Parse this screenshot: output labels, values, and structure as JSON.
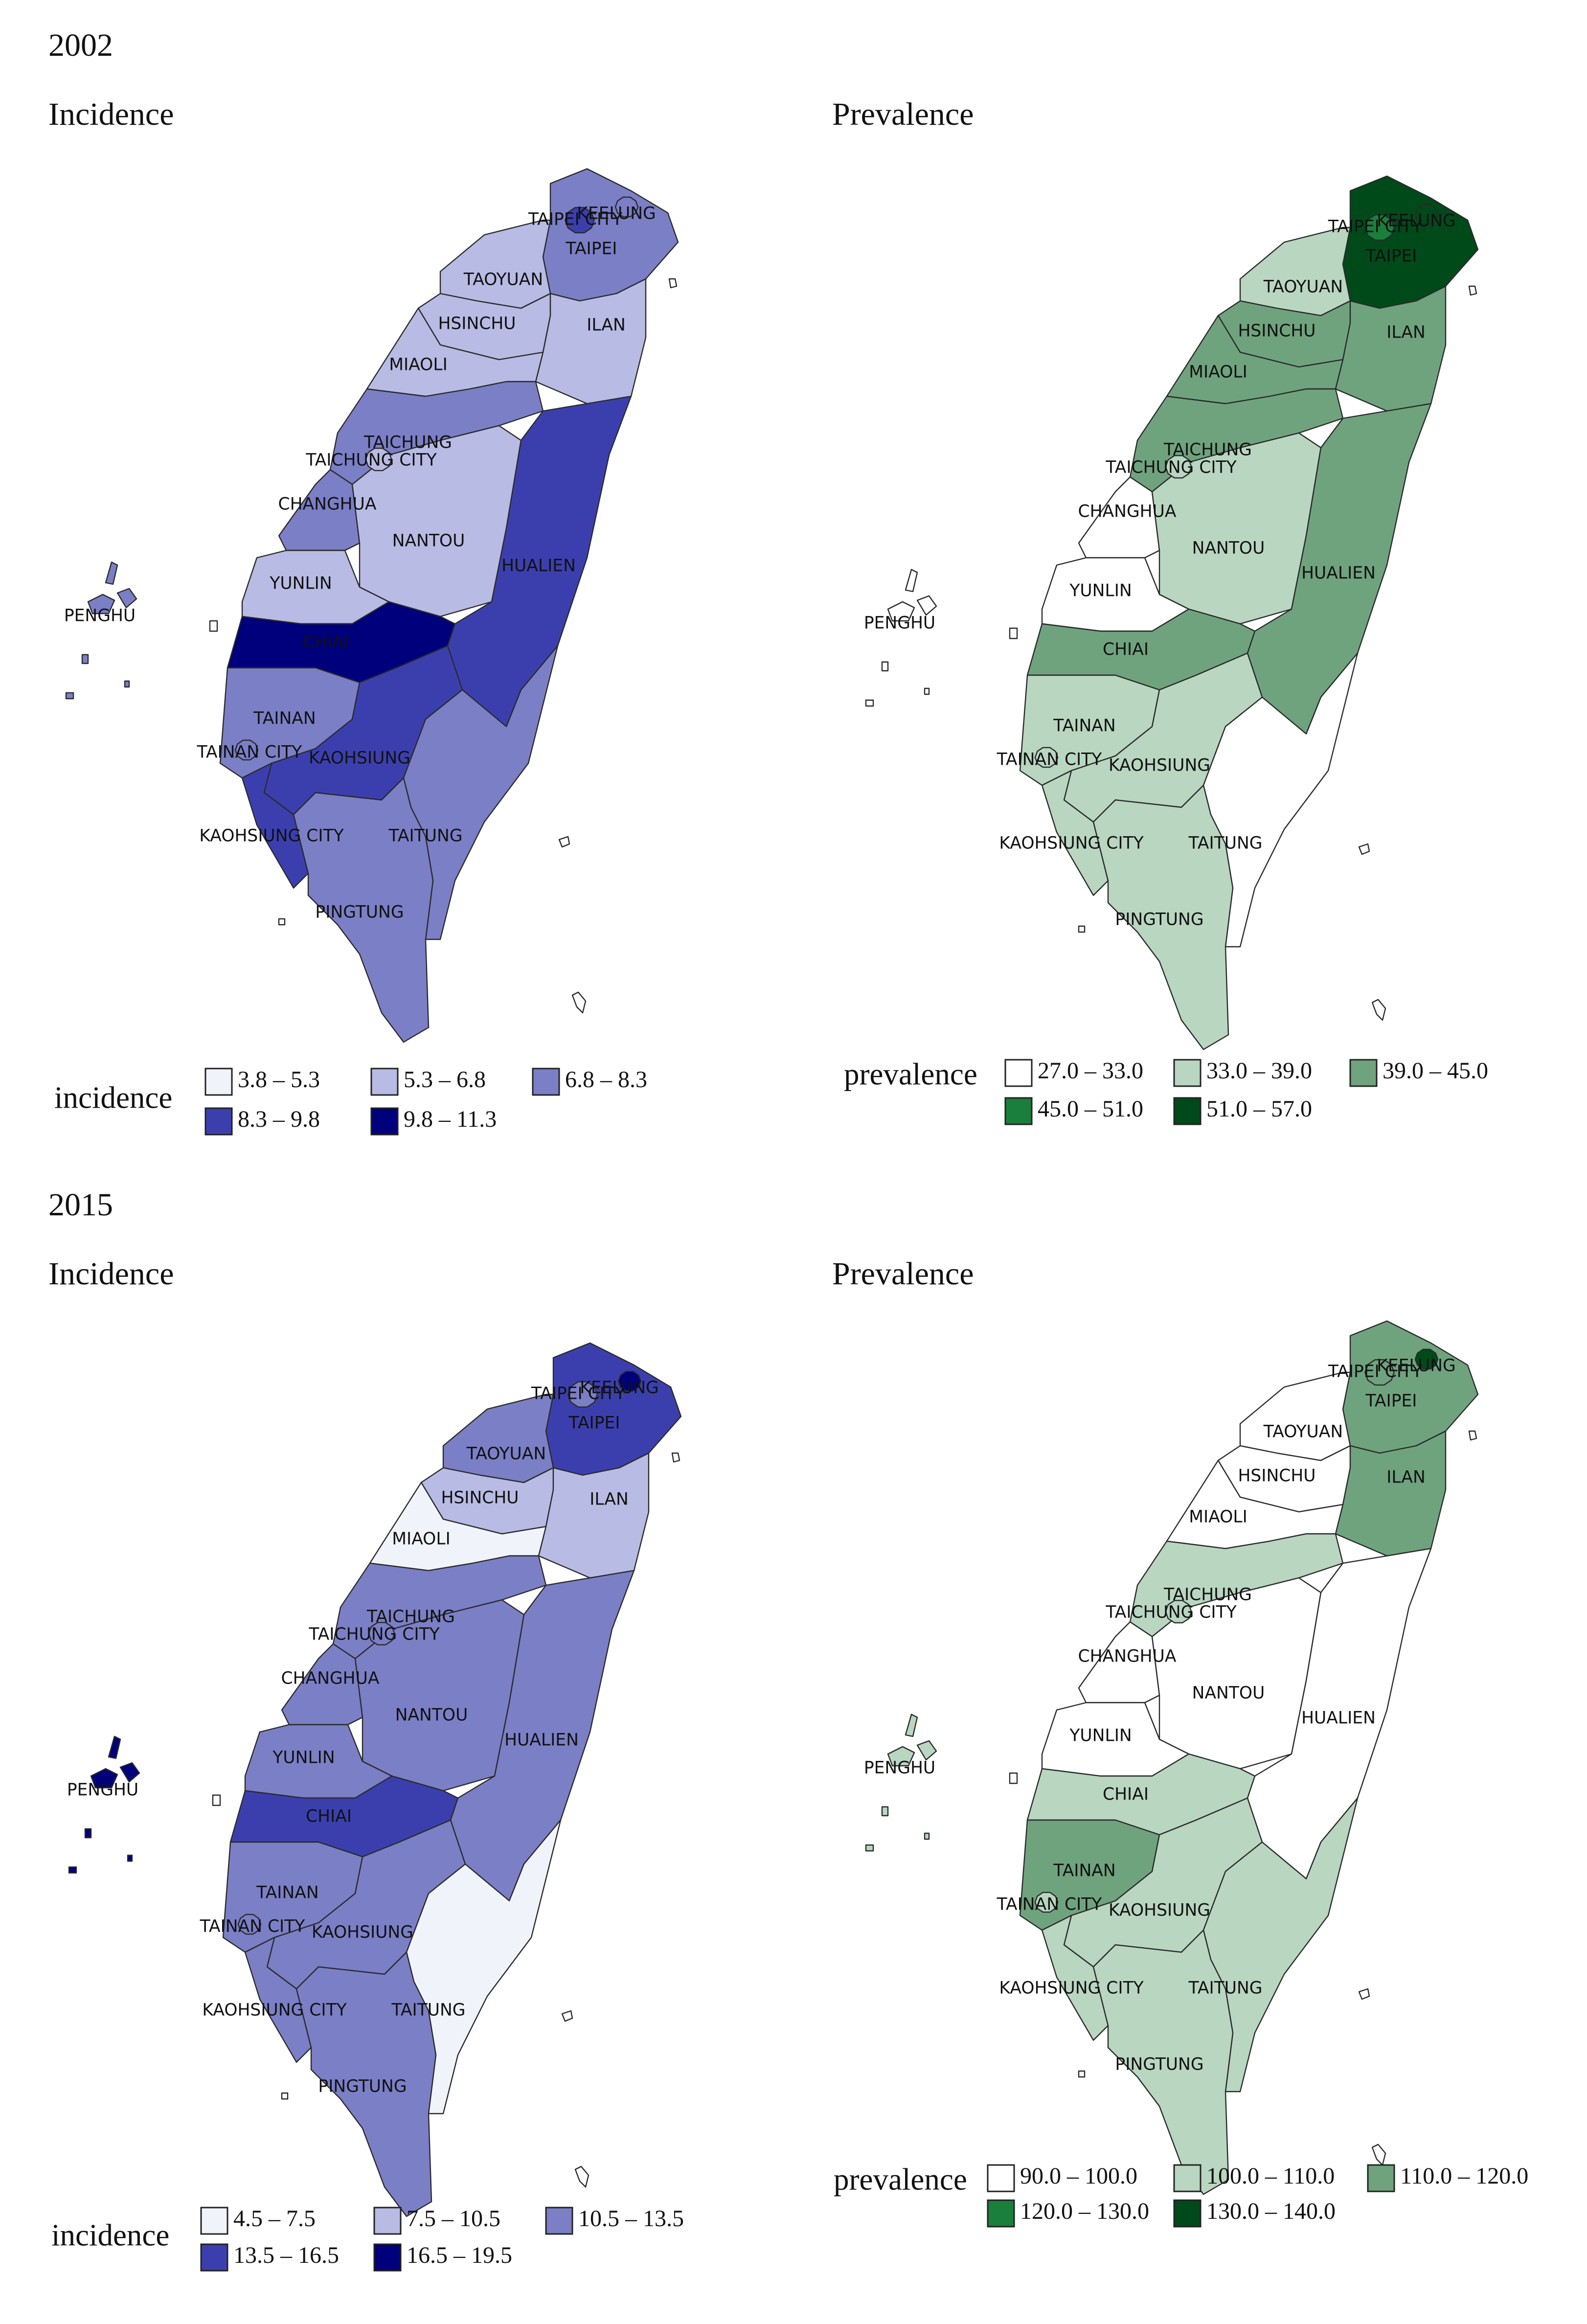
{
  "years": [
    {
      "year": "2002",
      "panels": [
        {
          "title": "Incidence",
          "legend_title": "incidence",
          "legend": [
            {
              "label": "3.8 – 5.3",
              "color": "#f1f3fb"
            },
            {
              "label": "5.3 – 6.8",
              "color": "#b8bbe3"
            },
            {
              "label": "6.8 – 8.3",
              "color": "#7b7fc6"
            },
            {
              "label": "8.3 – 9.8",
              "color": "#3b3fae"
            },
            {
              "label": "9.8 – 11.3",
              "color": "#00007d"
            }
          ],
          "regions": [
            {
              "name": "PENGHU",
              "color": "#7b7fc6"
            },
            {
              "name": "TAIPEI",
              "color": "#7b7fc6"
            },
            {
              "name": "TAOYUAN",
              "color": "#b8bbe3"
            },
            {
              "name": "HSINCHU",
              "color": "#b8bbe3"
            },
            {
              "name": "ILAN",
              "color": "#b8bbe3"
            },
            {
              "name": "MIAOLI",
              "color": "#b8bbe3"
            },
            {
              "name": "TAICHUNG",
              "color": "#7b7fc6"
            },
            {
              "name": "CHANGHUA",
              "color": "#7b7fc6"
            },
            {
              "name": "NANTOU",
              "color": "#b8bbe3"
            },
            {
              "name": "HUALIEN",
              "color": "#3b3fae"
            },
            {
              "name": "YUNLIN",
              "color": "#b8bbe3"
            },
            {
              "name": "CHIAI",
              "color": "#00007d"
            },
            {
              "name": "TAINAN",
              "color": "#7b7fc6"
            },
            {
              "name": "KAOHSIUNG",
              "color": "#3b3fae"
            },
            {
              "name": "KAOHSIUNG CITY",
              "color": "#3b3fae"
            },
            {
              "name": "TAITUNG",
              "color": "#7b7fc6"
            },
            {
              "name": "PINGTUNG",
              "color": "#7b7fc6"
            },
            {
              "name": "TAIPEI CITY",
              "color": "#3b3fae"
            },
            {
              "name": "KEELUNG",
              "color": "#7b7fc6"
            },
            {
              "name": "TAICHUNG CITY",
              "color": "#b8bbe3"
            },
            {
              "name": "TAINAN CITY",
              "color": "#7b7fc6"
            }
          ]
        },
        {
          "title": "Prevalence",
          "legend_title": "prevalence",
          "legend": [
            {
              "label": "27.0 – 33.0",
              "color": "#ffffff"
            },
            {
              "label": "33.0 – 39.0",
              "color": "#b9d6c0"
            },
            {
              "label": "39.0 – 45.0",
              "color": "#6fa37e"
            },
            {
              "label": "45.0 – 51.0",
              "color": "#1a7f3c"
            },
            {
              "label": "51.0 – 57.0",
              "color": "#004a1a"
            }
          ],
          "regions": [
            {
              "name": "PENGHU",
              "color": "#ffffff"
            },
            {
              "name": "TAIPEI",
              "color": "#004a1a"
            },
            {
              "name": "TAOYUAN",
              "color": "#b9d6c0"
            },
            {
              "name": "HSINCHU",
              "color": "#6fa37e"
            },
            {
              "name": "ILAN",
              "color": "#6fa37e"
            },
            {
              "name": "MIAOLI",
              "color": "#6fa37e"
            },
            {
              "name": "TAICHUNG",
              "color": "#6fa37e"
            },
            {
              "name": "CHANGHUA",
              "color": "#ffffff"
            },
            {
              "name": "NANTOU",
              "color": "#b9d6c0"
            },
            {
              "name": "HUALIEN",
              "color": "#6fa37e"
            },
            {
              "name": "YUNLIN",
              "color": "#ffffff"
            },
            {
              "name": "CHIAI",
              "color": "#6fa37e"
            },
            {
              "name": "TAINAN",
              "color": "#b9d6c0"
            },
            {
              "name": "KAOHSIUNG",
              "color": "#b9d6c0"
            },
            {
              "name": "KAOHSIUNG CITY",
              "color": "#b9d6c0"
            },
            {
              "name": "TAITUNG",
              "color": "#ffffff"
            },
            {
              "name": "PINGTUNG",
              "color": "#b9d6c0"
            },
            {
              "name": "TAIPEI CITY",
              "color": "#1a7f3c"
            },
            {
              "name": "KEELUNG",
              "color": "#004a1a"
            },
            {
              "name": "TAICHUNG CITY",
              "color": "#b9d6c0"
            },
            {
              "name": "TAINAN CITY",
              "color": "#b9d6c0"
            }
          ]
        }
      ]
    },
    {
      "year": "2015",
      "panels": [
        {
          "title": "Incidence",
          "legend_title": "incidence",
          "legend": [
            {
              "label": "4.5 – 7.5",
              "color": "#f1f3fb"
            },
            {
              "label": "7.5 – 10.5",
              "color": "#b8bbe3"
            },
            {
              "label": "10.5 – 13.5",
              "color": "#7b7fc6"
            },
            {
              "label": "13.5 – 16.5",
              "color": "#3b3fae"
            },
            {
              "label": "16.5 – 19.5",
              "color": "#00007d"
            }
          ],
          "regions": [
            {
              "name": "PENGHU",
              "color": "#00007d"
            },
            {
              "name": "TAIPEI",
              "color": "#3b3fae"
            },
            {
              "name": "TAOYUAN",
              "color": "#7b7fc6"
            },
            {
              "name": "HSINCHU",
              "color": "#b8bbe3"
            },
            {
              "name": "ILAN",
              "color": "#b8bbe3"
            },
            {
              "name": "MIAOLI",
              "color": "#f1f3fb"
            },
            {
              "name": "TAICHUNG",
              "color": "#7b7fc6"
            },
            {
              "name": "CHANGHUA",
              "color": "#7b7fc6"
            },
            {
              "name": "NANTOU",
              "color": "#7b7fc6"
            },
            {
              "name": "HUALIEN",
              "color": "#7b7fc6"
            },
            {
              "name": "YUNLIN",
              "color": "#7b7fc6"
            },
            {
              "name": "CHIAI",
              "color": "#3b3fae"
            },
            {
              "name": "TAINAN",
              "color": "#7b7fc6"
            },
            {
              "name": "KAOHSIUNG",
              "color": "#7b7fc6"
            },
            {
              "name": "KAOHSIUNG CITY",
              "color": "#7b7fc6"
            },
            {
              "name": "TAITUNG",
              "color": "#f1f3fb"
            },
            {
              "name": "PINGTUNG",
              "color": "#7b7fc6"
            },
            {
              "name": "TAIPEI CITY",
              "color": "#7b7fc6"
            },
            {
              "name": "KEELUNG",
              "color": "#00007d"
            },
            {
              "name": "TAICHUNG CITY",
              "color": "#7b7fc6"
            },
            {
              "name": "TAINAN CITY",
              "color": "#7b7fc6"
            }
          ]
        },
        {
          "title": "Prevalence",
          "legend_title": "prevalence",
          "legend": [
            {
              "label": "90.0 – 100.0",
              "color": "#ffffff"
            },
            {
              "label": "100.0 – 110.0",
              "color": "#b9d6c0"
            },
            {
              "label": "110.0 – 120.0",
              "color": "#6fa37e"
            },
            {
              "label": "120.0 – 130.0",
              "color": "#1a7f3c"
            },
            {
              "label": "130.0 – 140.0",
              "color": "#004a1a"
            }
          ],
          "regions": [
            {
              "name": "PENGHU",
              "color": "#b9d6c0"
            },
            {
              "name": "TAIPEI",
              "color": "#6fa37e"
            },
            {
              "name": "TAOYUAN",
              "color": "#ffffff"
            },
            {
              "name": "HSINCHU",
              "color": "#ffffff"
            },
            {
              "name": "ILAN",
              "color": "#6fa37e"
            },
            {
              "name": "MIAOLI",
              "color": "#ffffff"
            },
            {
              "name": "TAICHUNG",
              "color": "#b9d6c0"
            },
            {
              "name": "CHANGHUA",
              "color": "#ffffff"
            },
            {
              "name": "NANTOU",
              "color": "#ffffff"
            },
            {
              "name": "HUALIEN",
              "color": "#ffffff"
            },
            {
              "name": "YUNLIN",
              "color": "#ffffff"
            },
            {
              "name": "CHIAI",
              "color": "#b9d6c0"
            },
            {
              "name": "TAINAN",
              "color": "#6fa37e"
            },
            {
              "name": "KAOHSIUNG",
              "color": "#b9d6c0"
            },
            {
              "name": "KAOHSIUNG CITY",
              "color": "#b9d6c0"
            },
            {
              "name": "TAITUNG",
              "color": "#b9d6c0"
            },
            {
              "name": "PINGTUNG",
              "color": "#b9d6c0"
            },
            {
              "name": "TAIPEI CITY",
              "color": "#6fa37e"
            },
            {
              "name": "KEELUNG",
              "color": "#004a1a"
            },
            {
              "name": "TAICHUNG CITY",
              "color": "#b9d6c0"
            },
            {
              "name": "TAINAN CITY",
              "color": "#b9d6c0"
            }
          ]
        }
      ]
    }
  ]
}
